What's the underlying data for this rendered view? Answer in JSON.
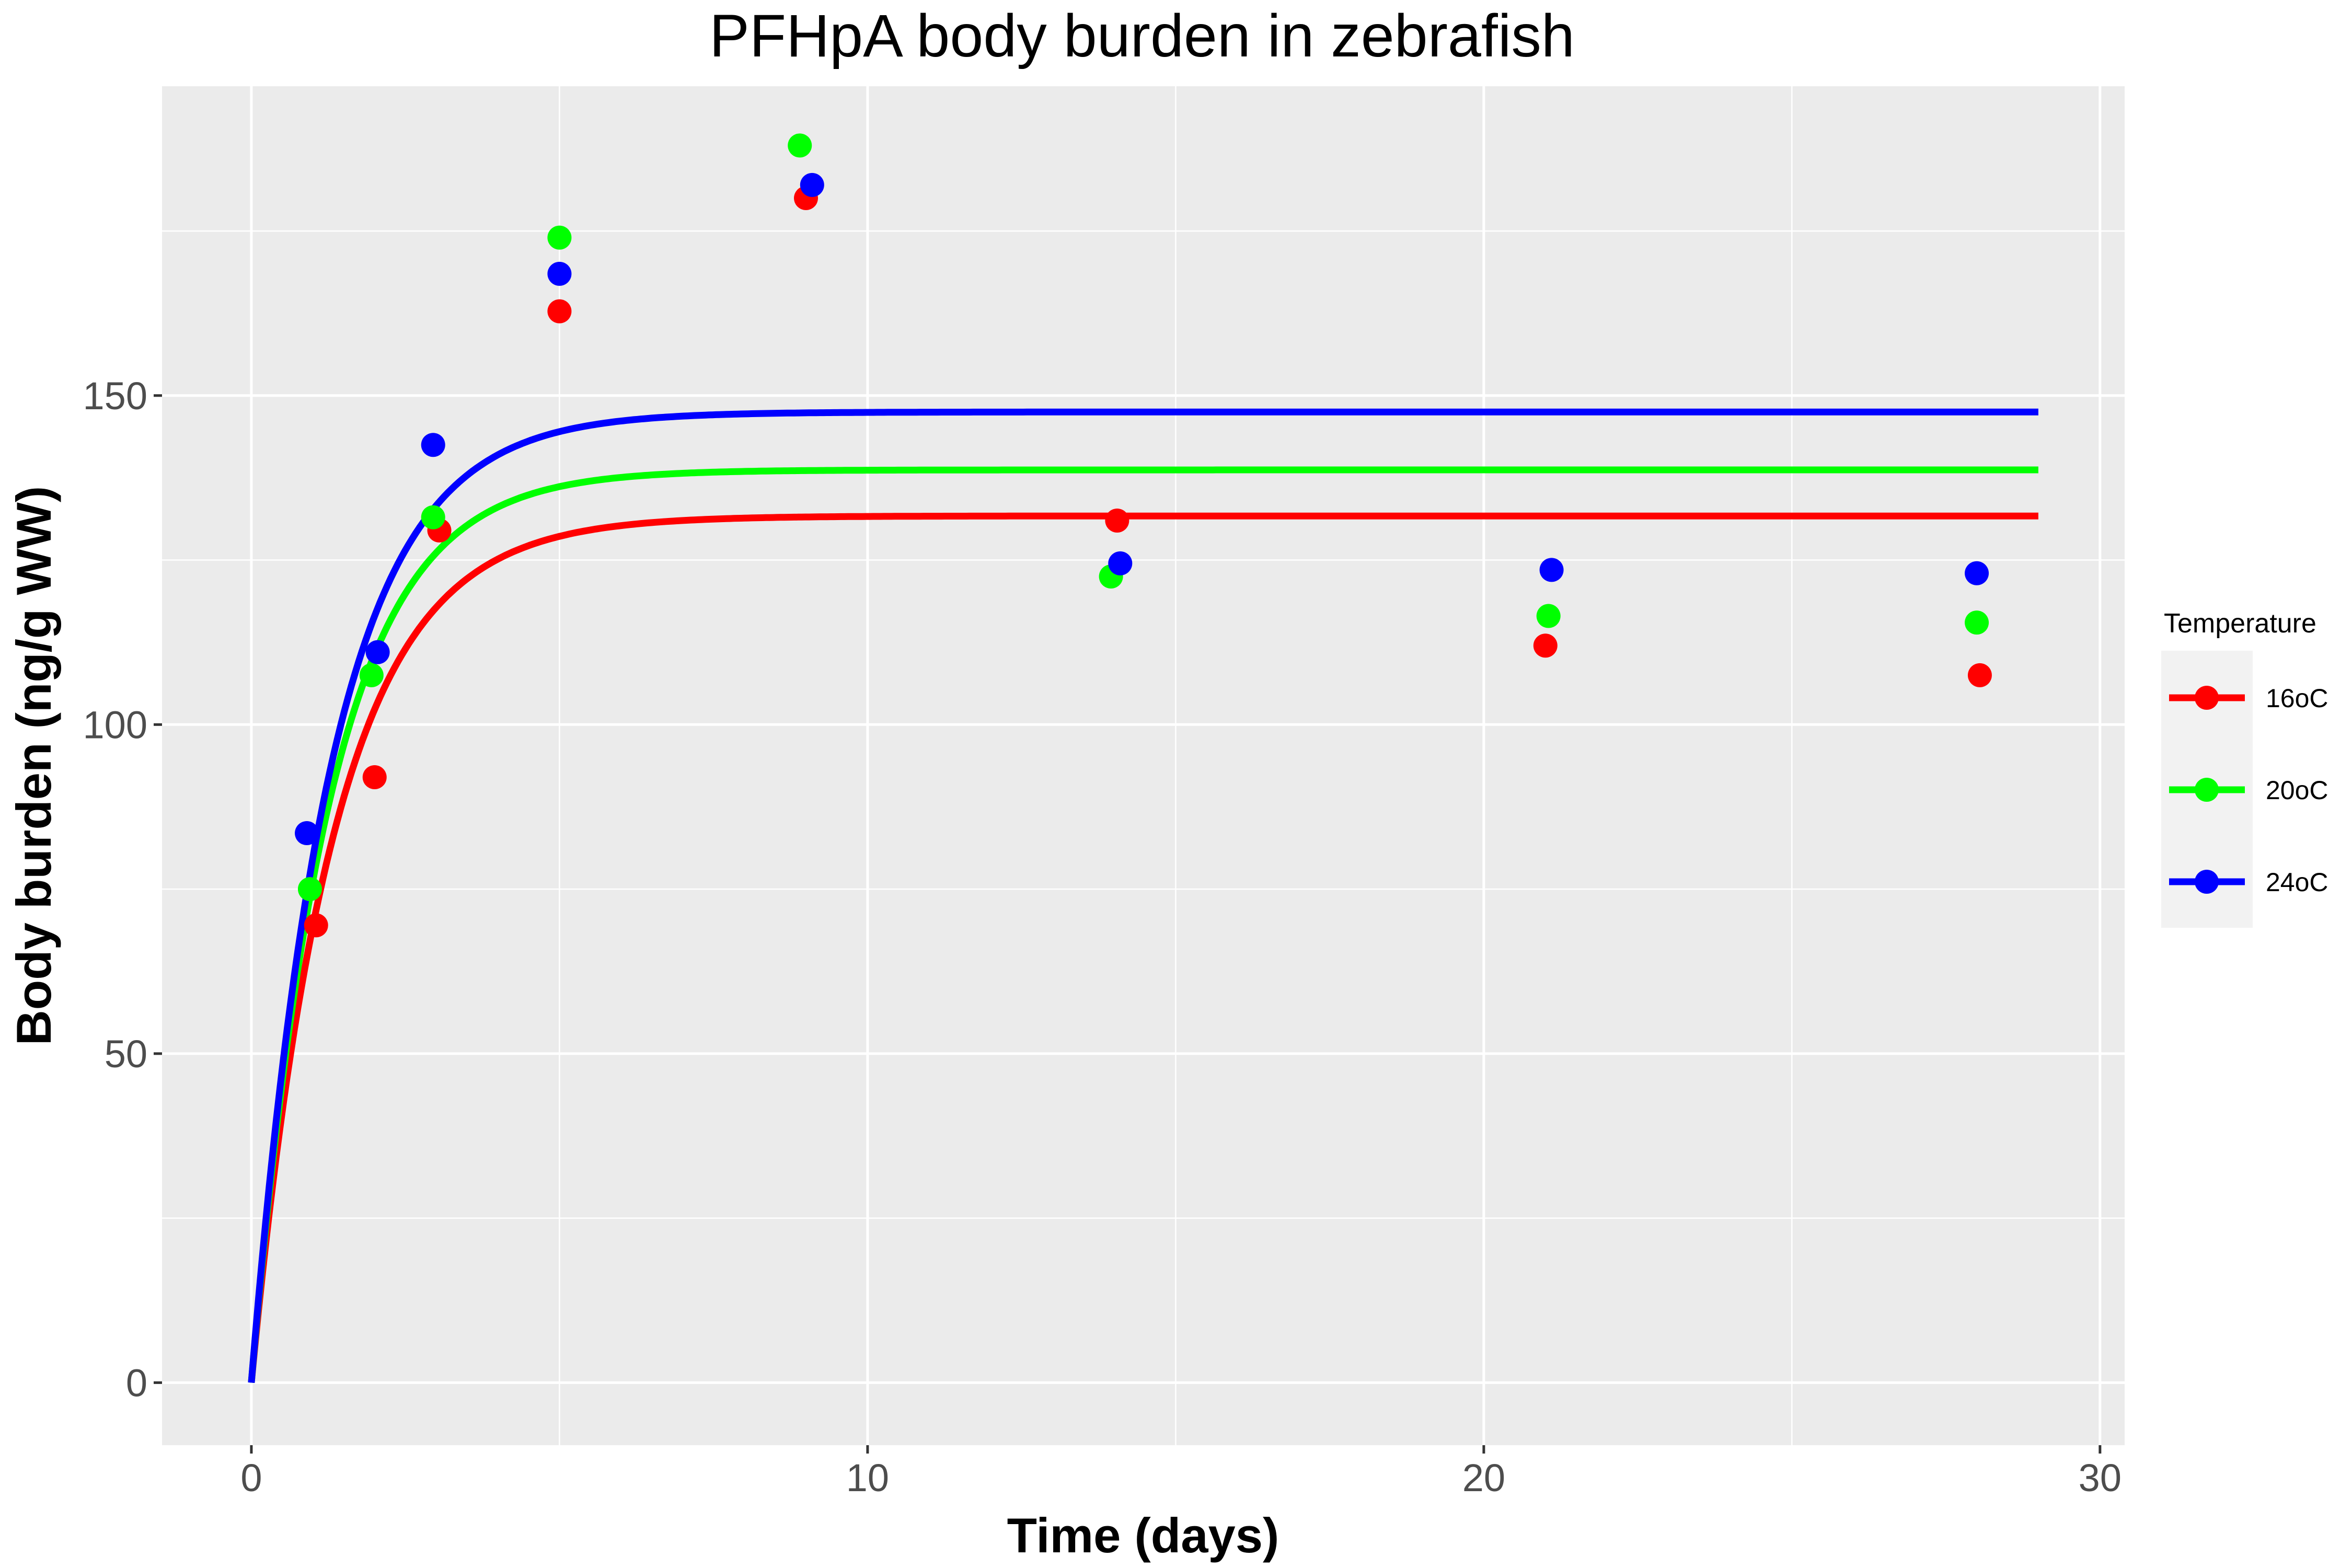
{
  "chart_data": {
    "type": "scatter",
    "title": "PFHpA body burden in zebrafish",
    "xlabel": "Time (days)",
    "ylabel": "Body burden (ng/g WW)",
    "xlim": [
      -1.45,
      30.4
    ],
    "ylim": [
      -9.5,
      197
    ],
    "x_ticks": [
      0,
      10,
      20,
      30
    ],
    "y_ticks": [
      0,
      50,
      100,
      150
    ],
    "grid": true,
    "legend": {
      "title": "Temperature",
      "position": "right"
    },
    "series": [
      {
        "name": "16oC",
        "color": "#ff0000",
        "points": [
          {
            "x": 1.05,
            "y": 69.5
          },
          {
            "x": 2.0,
            "y": 92.0
          },
          {
            "x": 3.05,
            "y": 129.5
          },
          {
            "x": 5.0,
            "y": 162.8
          },
          {
            "x": 9.0,
            "y": 180.0
          },
          {
            "x": 14.05,
            "y": 131.0
          },
          {
            "x": 21.0,
            "y": 112.0
          },
          {
            "x": 28.05,
            "y": 107.5
          }
        ],
        "fit": {
          "plateau": 131.7,
          "k": 0.75,
          "x_max": 29.0
        }
      },
      {
        "name": "20oC",
        "color": "#00ff00",
        "points": [
          {
            "x": 0.95,
            "y": 75.0
          },
          {
            "x": 1.95,
            "y": 107.5
          },
          {
            "x": 2.95,
            "y": 131.5
          },
          {
            "x": 5.0,
            "y": 174.0
          },
          {
            "x": 8.9,
            "y": 188.0
          },
          {
            "x": 13.95,
            "y": 122.5
          },
          {
            "x": 21.05,
            "y": 116.5
          },
          {
            "x": 28.0,
            "y": 115.5
          }
        ],
        "fit": {
          "plateau": 138.7,
          "k": 0.8,
          "x_max": 29.0
        }
      },
      {
        "name": "24oC",
        "color": "#0000ff",
        "points": [
          {
            "x": 0.9,
            "y": 83.5
          },
          {
            "x": 2.05,
            "y": 111.0
          },
          {
            "x": 2.95,
            "y": 142.5
          },
          {
            "x": 5.0,
            "y": 168.5
          },
          {
            "x": 9.1,
            "y": 182.0
          },
          {
            "x": 14.1,
            "y": 124.5
          },
          {
            "x": 21.1,
            "y": 123.5
          },
          {
            "x": 28.0,
            "y": 123.0
          }
        ],
        "fit": {
          "plateau": 147.5,
          "k": 0.78,
          "x_max": 29.0
        }
      }
    ]
  }
}
